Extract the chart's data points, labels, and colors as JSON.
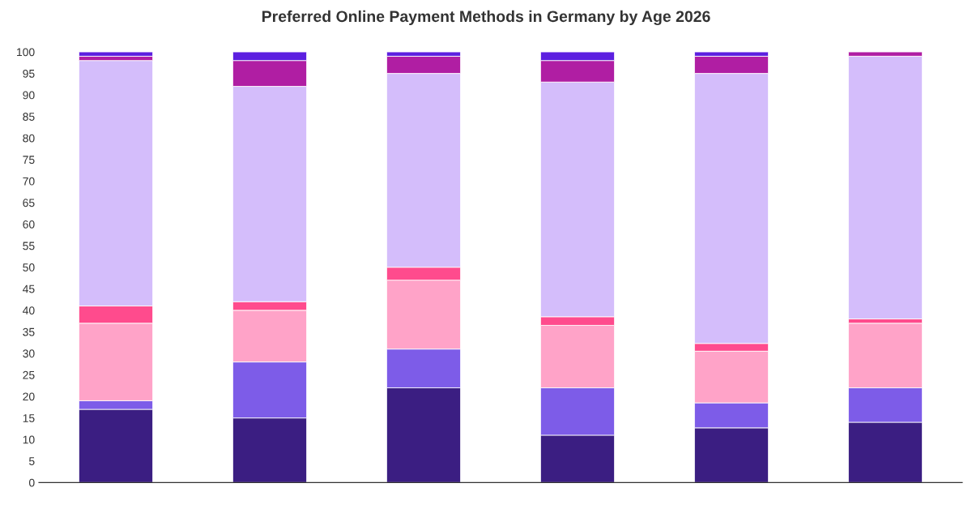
{
  "chart_data": {
    "type": "bar",
    "title": "Preferred Online Payment Methods in Germany by Age 2026",
    "stacked": true,
    "categories": [
      null,
      null,
      null,
      null,
      null,
      null
    ],
    "series": [
      {
        "color": "#3b1e82",
        "values": [
          17,
          15,
          22,
          11,
          12.7,
          14
        ]
      },
      {
        "color": "#7d5ce8",
        "values": [
          2,
          13,
          9,
          11,
          5.8,
          8
        ]
      },
      {
        "color": "#ffa3c8",
        "values": [
          18,
          12,
          16,
          14.5,
          12,
          15
        ]
      },
      {
        "color": "#ff4b8d",
        "values": [
          4,
          2,
          3,
          2,
          1.8,
          1
        ]
      },
      {
        "color": "#d4bdfb",
        "values": [
          57,
          50,
          45,
          54.5,
          62.7,
          61
        ]
      },
      {
        "color": "#b01ea3",
        "values": [
          1,
          6,
          4,
          5,
          4,
          1
        ]
      },
      {
        "color": "#5c1fe0",
        "values": [
          1,
          2,
          1,
          2,
          1,
          0
        ]
      }
    ],
    "ylim": [
      0,
      100
    ],
    "yticks": [
      0,
      5,
      10,
      15,
      20,
      25,
      30,
      35,
      40,
      45,
      50,
      55,
      60,
      65,
      70,
      75,
      80,
      85,
      90,
      95,
      100
    ],
    "grid": false
  }
}
